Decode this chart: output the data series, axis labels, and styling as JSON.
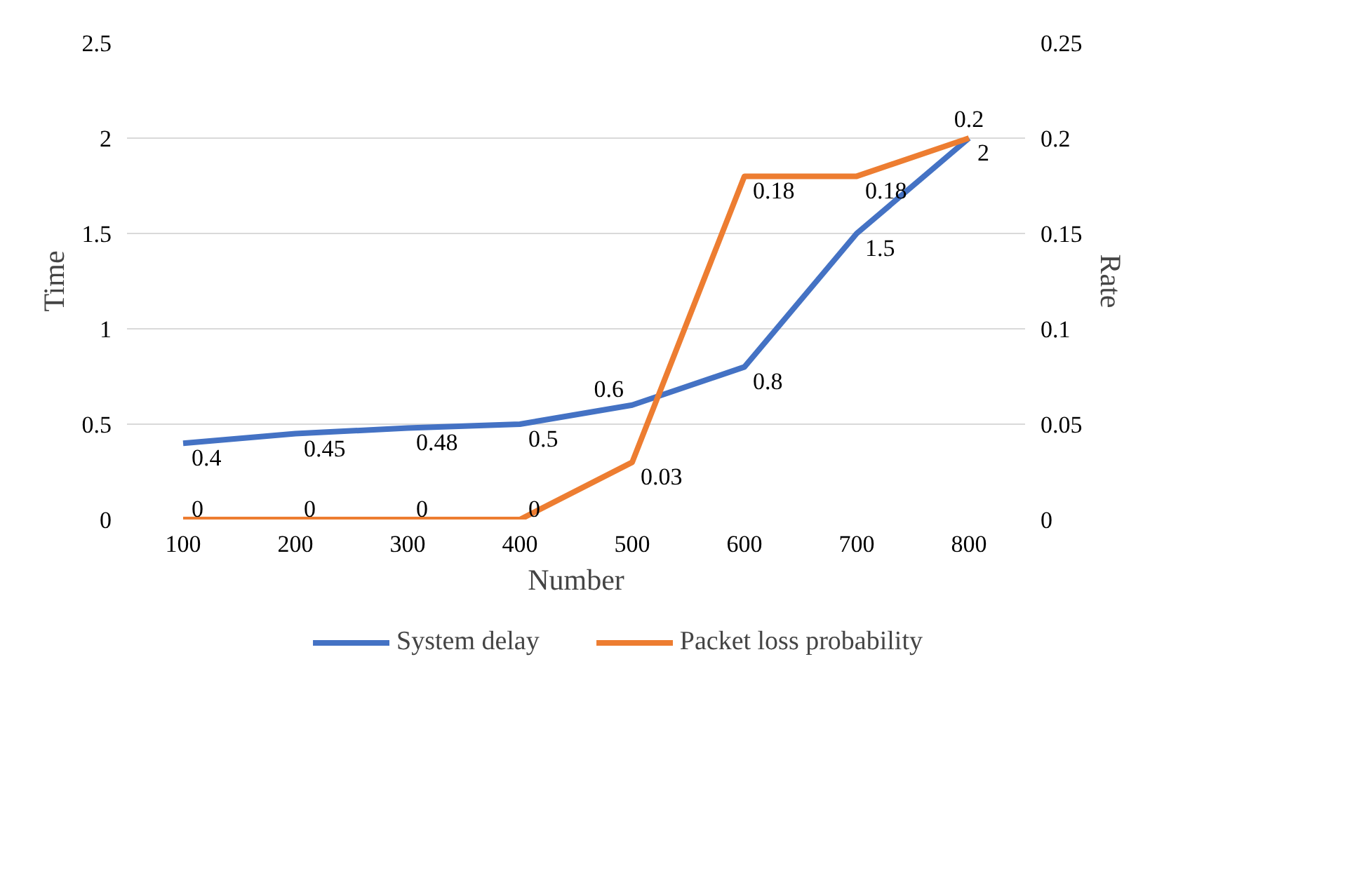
{
  "chart_data": {
    "type": "line",
    "xlabel": "Number",
    "ylabel": "Time",
    "y2label": "Rate",
    "categories": [
      "100",
      "200",
      "300",
      "400",
      "500",
      "600",
      "700",
      "800"
    ],
    "series": [
      {
        "name": "System delay",
        "color": "#4472c4",
        "values": [
          0.4,
          0.45,
          0.48,
          0.5,
          0.6,
          0.8,
          1.5,
          2
        ]
      },
      {
        "name": "Packet loss probability",
        "color": "#ed7d31",
        "axis": "y2",
        "values": [
          0,
          0,
          0,
          0,
          0.03,
          0.18,
          0.18,
          0.2
        ]
      }
    ],
    "ylim": [
      0,
      2.5
    ],
    "yticks": [
      0,
      0.5,
      1,
      1.5,
      2,
      2.5
    ],
    "y2lim": [
      0,
      0.25
    ],
    "y2ticks": [
      0,
      0.05,
      0.1,
      0.15,
      0.2,
      0.25
    ],
    "grid": "y",
    "legend": "bottom",
    "data_labels": true,
    "marker": "none",
    "line_style": "solid"
  }
}
